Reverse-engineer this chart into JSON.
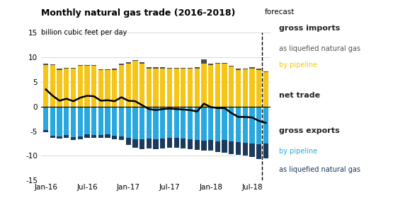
{
  "title": "Monthly natural gas trade (2016-2018)",
  "ylabel": "billion cubic feet per day",
  "ylim": [
    -15,
    15
  ],
  "yticks": [
    -15,
    -10,
    -5,
    0,
    5,
    10,
    15
  ],
  "xtick_labels": [
    "Jan-16",
    "Jul-16",
    "Jan-17",
    "Jul-17",
    "Jan-18",
    "Jul-18"
  ],
  "xtick_positions": [
    0,
    6,
    12,
    18,
    24,
    30
  ],
  "forecast_idx": 31.5,
  "colors": {
    "import_lng": "#4d4d4d",
    "import_pipeline": "#f5c518",
    "export_pipeline": "#29a8e0",
    "export_lng": "#1b3a5c",
    "net_trade": "#000000",
    "grid": "#cccccc"
  },
  "import_pipeline": [
    8.5,
    8.4,
    7.5,
    7.7,
    7.7,
    8.3,
    8.3,
    8.3,
    7.4,
    7.4,
    7.5,
    8.5,
    8.8,
    9.3,
    8.8,
    7.8,
    7.8,
    7.8,
    7.7,
    7.7,
    7.7,
    7.7,
    7.8,
    8.7,
    8.5,
    8.7,
    8.7,
    8.1,
    7.5,
    7.6,
    7.8,
    7.5,
    7.0
  ],
  "import_lng": [
    0.2,
    0.2,
    0.2,
    0.2,
    0.2,
    0.2,
    0.2,
    0.2,
    0.2,
    0.2,
    0.2,
    0.2,
    0.2,
    0.2,
    0.2,
    0.2,
    0.2,
    0.2,
    0.2,
    0.2,
    0.2,
    0.2,
    0.2,
    0.9,
    0.3,
    0.2,
    0.2,
    0.2,
    0.2,
    0.2,
    0.2,
    0.2,
    0.2
  ],
  "export_pipeline": [
    -4.8,
    -5.9,
    -6.0,
    -5.8,
    -6.2,
    -6.1,
    -5.7,
    -5.8,
    -5.8,
    -5.7,
    -5.9,
    -6.0,
    -6.3,
    -6.6,
    -6.7,
    -6.5,
    -6.6,
    -6.5,
    -6.4,
    -6.4,
    -6.5,
    -6.6,
    -6.8,
    -6.9,
    -6.8,
    -7.0,
    -6.8,
    -7.1,
    -7.2,
    -7.3,
    -7.5,
    -7.6,
    -7.5
  ],
  "export_lng": [
    -0.4,
    -0.5,
    -0.5,
    -0.5,
    -0.6,
    -0.6,
    -0.6,
    -0.6,
    -0.6,
    -0.6,
    -0.7,
    -0.8,
    -1.5,
    -1.8,
    -2.0,
    -2.0,
    -2.1,
    -2.0,
    -1.9,
    -2.0,
    -2.0,
    -2.0,
    -2.0,
    -2.1,
    -2.1,
    -2.2,
    -2.5,
    -2.5,
    -2.6,
    -2.6,
    -2.7,
    -3.0,
    -3.0
  ],
  "net_trade": [
    3.5,
    2.2,
    1.2,
    1.6,
    1.1,
    1.8,
    2.2,
    2.1,
    1.2,
    1.3,
    1.1,
    1.9,
    1.2,
    1.1,
    0.3,
    -0.5,
    -0.7,
    -0.5,
    -0.4,
    -0.5,
    -0.6,
    -0.7,
    -1.0,
    0.6,
    -0.1,
    -0.3,
    -0.3,
    -1.3,
    -2.1,
    -2.1,
    -2.2,
    -2.9,
    -3.3
  ],
  "legend": {
    "gross_imports_label": "gross imports",
    "import_lng_label": "as liquefied natural gas",
    "import_pipeline_label": "by pipeline",
    "net_trade_label": "net trade",
    "gross_exports_label": "gross exports",
    "export_pipeline_label": "by pipeline",
    "export_lng_label": "as liquefied natural gas"
  }
}
